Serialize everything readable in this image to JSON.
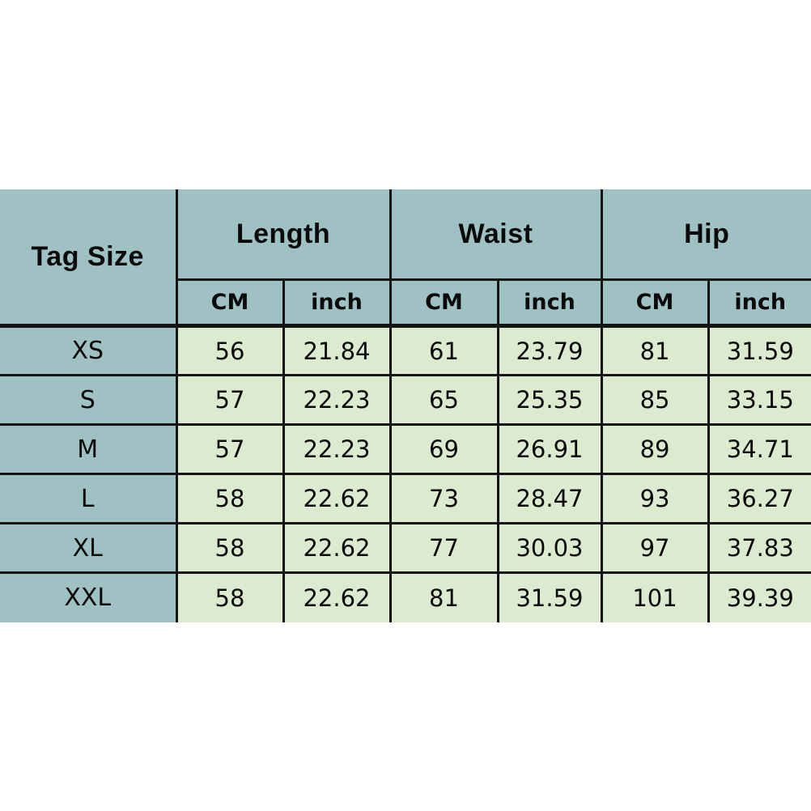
{
  "chart_data": {
    "type": "table",
    "corner_label": "Tag Size",
    "groups": [
      {
        "label": "Length"
      },
      {
        "label": "Waist"
      },
      {
        "label": "Hip"
      }
    ],
    "sub_headers": [
      "CM",
      "inch",
      "CM",
      "inch",
      "CM",
      "inch"
    ],
    "rows": [
      [
        "XS",
        "56",
        "21.84",
        "61",
        "23.79",
        "81",
        "31.59"
      ],
      [
        "S",
        "57",
        "22.23",
        "65",
        "25.35",
        "85",
        "33.15"
      ],
      [
        "M",
        "57",
        "22.23",
        "69",
        "26.91",
        "89",
        "34.71"
      ],
      [
        "L",
        "58",
        "22.62",
        "73",
        "28.47",
        "93",
        "36.27"
      ],
      [
        "XL",
        "58",
        "22.62",
        "77",
        "30.03",
        "97",
        "37.83"
      ],
      [
        "XXL",
        "58",
        "22.62",
        "81",
        "31.59",
        "101",
        "39.39"
      ]
    ]
  },
  "colors": {
    "header_bg": "#a0c1c4",
    "cell_bg": "#dcead0",
    "border": "#141414",
    "accent_strip": "#cc9833"
  }
}
